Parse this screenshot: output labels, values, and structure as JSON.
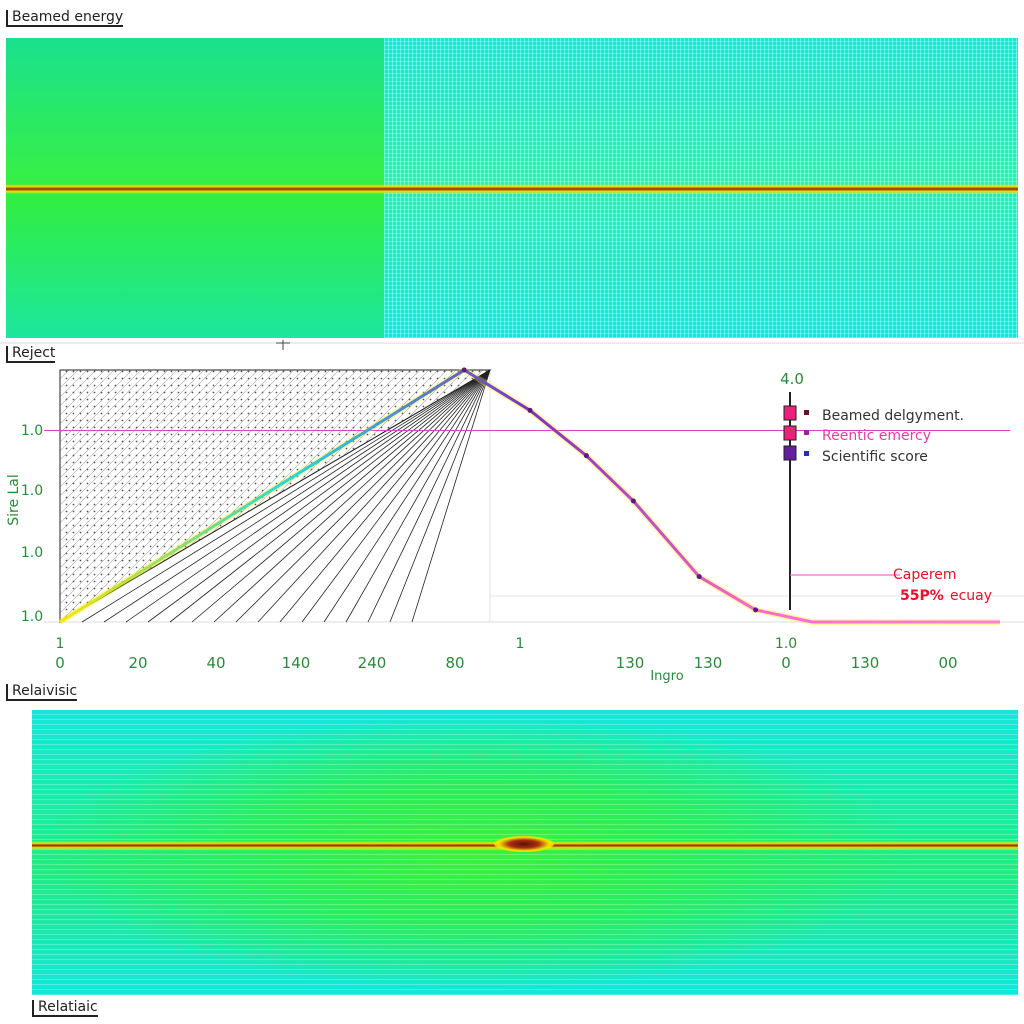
{
  "panels": {
    "top_label": "Beamed energy",
    "middle_label": "Reject",
    "bottom_label": "Relaivisic",
    "footer_label": "Relatiaic"
  },
  "colors": {
    "heat_left": "#30ee45",
    "heat_right": "#18e6d6",
    "band_core": "#8a2a0c",
    "band_glow": "#f2e300",
    "axis_text": "#2a8a3a",
    "reference_line": "#e040c8",
    "curve_tail": "#ff6ad0",
    "annotation_red": "#e8102a"
  },
  "chart_data": [
    {
      "type": "heatmap",
      "panel": "top",
      "title": "Beamed energy",
      "band_y_fraction": 0.5
    },
    {
      "type": "line",
      "panel": "middle",
      "title": "Reject",
      "xlabel": "Ingro",
      "ylabel": "Sire Lal",
      "x_tick_labels": [
        "0",
        "20",
        "40",
        "140",
        "240",
        "80",
        "",
        "130",
        "130",
        "0",
        "130",
        "00"
      ],
      "x_tick_marks": [
        "1",
        "",
        "",
        "",
        "",
        "",
        "1",
        "",
        "",
        "1.0",
        "",
        ""
      ],
      "y_tick_labels": [
        "1.0",
        "1.0",
        "1.0",
        "1.0"
      ],
      "top_marker_label": "4.0",
      "legend": [
        {
          "name": "Beamed delgyment.",
          "color": "#e8247a"
        },
        {
          "name": "Reentic emercy",
          "color": "#e8247a"
        },
        {
          "name": "Scientific score",
          "color": "#6020a0"
        }
      ],
      "annotations": [
        "Caperem",
        "55P%",
        "ecuay"
      ],
      "series": [
        {
          "name": "Beamed delgyment.",
          "x": [
            0,
            430,
            500,
            560,
            610,
            680,
            740,
            800,
            1000
          ],
          "y": [
            0,
            250,
            210,
            165,
            120,
            45,
            12,
            0,
            0
          ]
        }
      ],
      "reference_y": 190
    },
    {
      "type": "heatmap",
      "panel": "bottom",
      "title": "Relaivisic",
      "band_y_fraction": 0.47
    }
  ]
}
